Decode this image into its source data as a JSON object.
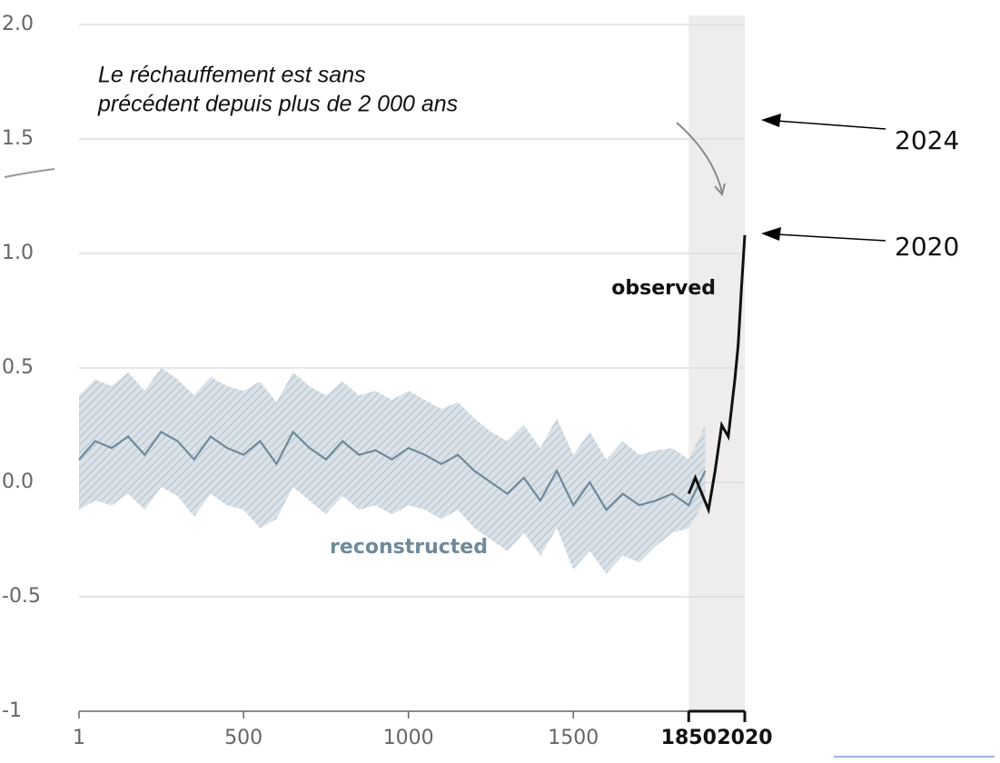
{
  "chart_data": {
    "type": "line",
    "annotation": [
      "Le réchauffement est sans",
      "précédent depuis plus de  2 000 ans"
    ],
    "year_labels": [
      "2024",
      "2020"
    ],
    "xlim": [
      1,
      2020
    ],
    "xticks": [
      1,
      500,
      1000,
      1500,
      1850,
      2020
    ],
    "ylim": [
      -1,
      2
    ],
    "yticks": [
      {
        "value": 2,
        "label": "2.0"
      },
      1.5,
      {
        "value": 1,
        "label": "1.0"
      },
      0.5,
      {
        "value": 0,
        "label": "0.0"
      },
      -0.5,
      -1
    ],
    "grid": true,
    "highlight_span": [
      1850,
      2020
    ],
    "series": [
      {
        "name": "reconstructed",
        "color": "#6f8a9a",
        "x": [
          1,
          50,
          100,
          150,
          200,
          250,
          300,
          350,
          400,
          450,
          500,
          550,
          600,
          650,
          700,
          750,
          800,
          850,
          900,
          950,
          1000,
          1050,
          1100,
          1150,
          1200,
          1250,
          1300,
          1350,
          1400,
          1450,
          1500,
          1550,
          1600,
          1650,
          1700,
          1750,
          1800,
          1850,
          1900
        ],
        "values": [
          0.1,
          0.18,
          0.15,
          0.2,
          0.12,
          0.22,
          0.18,
          0.1,
          0.2,
          0.15,
          0.12,
          0.18,
          0.08,
          0.22,
          0.15,
          0.1,
          0.18,
          0.12,
          0.14,
          0.1,
          0.15,
          0.12,
          0.08,
          0.12,
          0.05,
          0.0,
          -0.05,
          0.02,
          -0.08,
          0.05,
          -0.1,
          0.0,
          -0.12,
          -0.05,
          -0.1,
          -0.08,
          -0.05,
          -0.1,
          0.05
        ],
        "lower": [
          -0.12,
          -0.08,
          -0.1,
          -0.05,
          -0.12,
          -0.02,
          -0.06,
          -0.15,
          -0.05,
          -0.1,
          -0.12,
          -0.2,
          -0.16,
          -0.02,
          -0.08,
          -0.14,
          -0.06,
          -0.12,
          -0.1,
          -0.14,
          -0.1,
          -0.12,
          -0.16,
          -0.12,
          -0.2,
          -0.25,
          -0.3,
          -0.22,
          -0.32,
          -0.2,
          -0.38,
          -0.3,
          -0.4,
          -0.32,
          -0.35,
          -0.28,
          -0.22,
          -0.2,
          -0.08
        ],
        "upper": [
          0.38,
          0.45,
          0.42,
          0.48,
          0.4,
          0.5,
          0.45,
          0.38,
          0.46,
          0.42,
          0.4,
          0.44,
          0.35,
          0.48,
          0.42,
          0.38,
          0.44,
          0.38,
          0.4,
          0.36,
          0.4,
          0.36,
          0.32,
          0.35,
          0.28,
          0.22,
          0.18,
          0.25,
          0.15,
          0.28,
          0.12,
          0.22,
          0.1,
          0.18,
          0.12,
          0.14,
          0.15,
          0.1,
          0.25
        ]
      },
      {
        "name": "observed",
        "color": "#111111",
        "x": [
          1850,
          1870,
          1890,
          1910,
          1930,
          1950,
          1970,
          1990,
          2000,
          2010,
          2020
        ],
        "values": [
          -0.05,
          0.02,
          -0.05,
          -0.12,
          0.05,
          0.25,
          0.2,
          0.45,
          0.6,
          0.85,
          1.08
        ]
      }
    ]
  }
}
